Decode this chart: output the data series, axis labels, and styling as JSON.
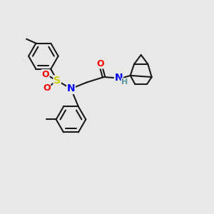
{
  "bg_color": "#e8e8e8",
  "bond_color": "#1a1a1a",
  "bond_width": 1.5,
  "atom_colors": {
    "O": "#ff0000",
    "S": "#cccc00",
    "N": "#0000ff",
    "H": "#5c9999",
    "C": "#1a1a1a"
  },
  "xlim": [
    0,
    10
  ],
  "ylim": [
    0,
    10
  ]
}
